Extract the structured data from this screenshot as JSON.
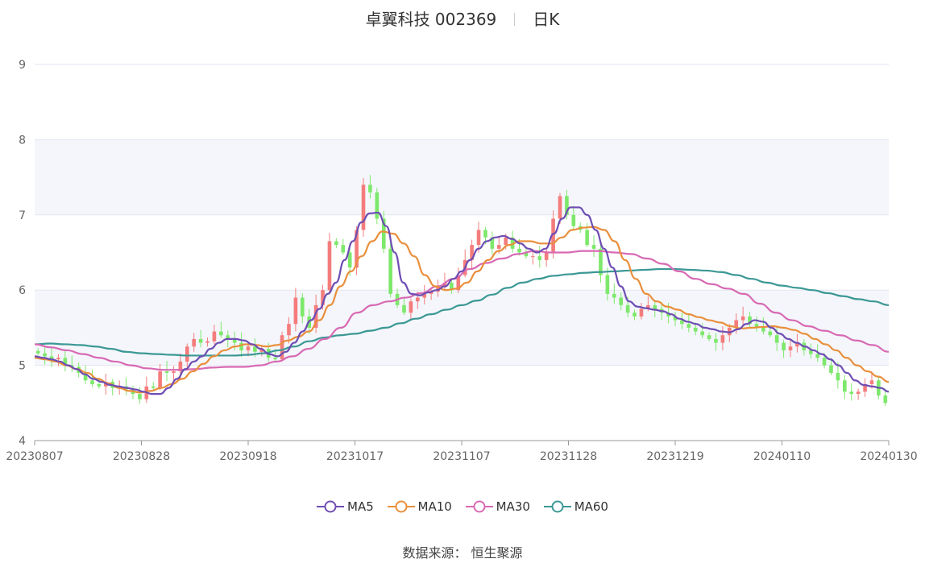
{
  "header": {
    "stock": "卓翼科技 002369",
    "period": "日K"
  },
  "source_text": "数据来源：  恒生聚源",
  "chart_data": {
    "type": "candlestick",
    "title": "卓翼科技 002369",
    "ylim": [
      4,
      9
    ],
    "yticks": [
      "9",
      "8",
      "7",
      "6",
      "5",
      "4"
    ],
    "x_tick_labels": [
      "20230807",
      "20230828",
      "20230918",
      "20231017",
      "20231107",
      "20231128",
      "20231219",
      "20240110",
      "20240130"
    ],
    "up_color": "#f47c7c",
    "down_color": "#7de86b",
    "band_color": "#f4f6fb",
    "ohlc_close": [
      5.16,
      5.12,
      5.08,
      5.1,
      5.0,
      4.98,
      4.9,
      4.8,
      4.75,
      4.72,
      4.78,
      4.7,
      4.72,
      4.68,
      4.62,
      4.55,
      4.72,
      4.7,
      4.92,
      4.9,
      4.92,
      5.05,
      5.25,
      5.35,
      5.3,
      5.32,
      5.45,
      5.4,
      5.35,
      5.3,
      5.2,
      5.25,
      5.18,
      5.22,
      5.1,
      5.08,
      5.4,
      5.55,
      5.9,
      5.65,
      5.5,
      5.8,
      6.0,
      6.65,
      6.6,
      6.5,
      6.3,
      6.8,
      7.4,
      7.3,
      6.95,
      6.55,
      5.95,
      5.8,
      5.7,
      5.85,
      5.9,
      5.95,
      5.98,
      6.05,
      6.1,
      6.0,
      6.2,
      6.4,
      6.6,
      6.8,
      6.7,
      6.55,
      6.6,
      6.7,
      6.55,
      6.5,
      6.45,
      6.45,
      6.4,
      6.5,
      6.95,
      7.25,
      7.0,
      6.85,
      6.8,
      6.6,
      6.55,
      6.2,
      5.95,
      5.9,
      5.8,
      5.7,
      5.65,
      5.75,
      5.8,
      5.75,
      5.7,
      5.65,
      5.6,
      5.55,
      5.5,
      5.45,
      5.4,
      5.35,
      5.3,
      5.4,
      5.5,
      5.6,
      5.65,
      5.55,
      5.5,
      5.45,
      5.4,
      5.3,
      5.2,
      5.25,
      5.3,
      5.2,
      5.15,
      5.1,
      5.0,
      4.9,
      4.8,
      4.65,
      4.62,
      4.65,
      4.75,
      4.8,
      4.6,
      4.5
    ],
    "ma_legend": [
      "MA5",
      "MA10",
      "MA30",
      "MA60"
    ],
    "ma_colors": [
      "#6e4eb3",
      "#e98f3c",
      "#d869b3",
      "#3b9895"
    ],
    "ma5": [
      5.12,
      5.1,
      5.08,
      5.05,
      5.0,
      4.95,
      4.88,
      4.82,
      4.78,
      4.74,
      4.72,
      4.7,
      4.68,
      4.65,
      4.62,
      4.62,
      4.7,
      4.82,
      4.95,
      5.05,
      5.12,
      5.22,
      5.3,
      5.35,
      5.35,
      5.33,
      5.28,
      5.22,
      5.15,
      5.12,
      5.18,
      5.3,
      5.45,
      5.6,
      5.75,
      5.95,
      6.1,
      6.4,
      6.65,
      6.9,
      7.02,
      7.03,
      6.85,
      6.5,
      6.1,
      5.95,
      5.93,
      5.97,
      6.0,
      6.05,
      6.15,
      6.25,
      6.4,
      6.55,
      6.65,
      6.7,
      6.72,
      6.68,
      6.62,
      6.55,
      6.5,
      6.55,
      6.75,
      6.95,
      7.1,
      7.1,
      7.0,
      6.8,
      6.55,
      6.3,
      6.05,
      5.85,
      5.78,
      5.76,
      5.74,
      5.72,
      5.68,
      5.62,
      5.58,
      5.55,
      5.5,
      5.48,
      5.45,
      5.44,
      5.48,
      5.55,
      5.6,
      5.58,
      5.5,
      5.42,
      5.35,
      5.3,
      5.25,
      5.2,
      5.15,
      5.08,
      5.0,
      4.9,
      4.8,
      4.74,
      4.72,
      4.7,
      4.65
    ],
    "ma10": [
      5.1,
      5.08,
      5.05,
      5.0,
      4.95,
      4.9,
      4.82,
      4.76,
      4.7,
      4.66,
      4.64,
      4.66,
      4.7,
      4.75,
      4.82,
      4.92,
      5.02,
      5.12,
      5.2,
      5.25,
      5.28,
      5.27,
      5.25,
      5.27,
      5.33,
      5.38,
      5.45,
      5.6,
      5.8,
      6.05,
      6.25,
      6.45,
      6.65,
      6.78,
      6.75,
      6.62,
      6.45,
      6.2,
      6.05,
      6.0,
      6.02,
      6.1,
      6.25,
      6.4,
      6.52,
      6.6,
      6.65,
      6.65,
      6.62,
      6.62,
      6.7,
      6.8,
      6.83,
      6.84,
      6.8,
      6.65,
      6.4,
      6.15,
      5.95,
      5.85,
      5.78,
      5.74,
      5.68,
      5.64,
      5.6,
      5.57,
      5.52,
      5.49,
      5.5,
      5.51,
      5.52,
      5.5,
      5.47,
      5.42,
      5.35,
      5.28,
      5.2,
      5.1,
      5.0,
      4.92,
      4.85,
      4.78
    ],
    "ma30": [
      5.28,
      5.24,
      5.2,
      5.15,
      5.1,
      5.05,
      5.0,
      4.96,
      4.94,
      4.94,
      4.95,
      4.97,
      4.98,
      4.98,
      5.0,
      5.05,
      5.12,
      5.22,
      5.35,
      5.5,
      5.7,
      5.8,
      5.85,
      5.9,
      5.96,
      6.05,
      6.15,
      6.28,
      6.36,
      6.42,
      6.48,
      6.52,
      6.5,
      6.5,
      6.52,
      6.52,
      6.5,
      6.48,
      6.42,
      6.35,
      6.25,
      6.15,
      6.08,
      6.02,
      5.95,
      5.82,
      5.7,
      5.6,
      5.52,
      5.46,
      5.4,
      5.33,
      5.27,
      5.18
    ],
    "ma60": [
      5.28,
      5.29,
      5.28,
      5.27,
      5.25,
      5.22,
      5.18,
      5.16,
      5.15,
      5.14,
      5.13,
      5.13,
      5.13,
      5.13,
      5.14,
      5.16,
      5.2,
      5.25,
      5.32,
      5.37,
      5.4,
      5.42,
      5.46,
      5.5,
      5.56,
      5.62,
      5.68,
      5.74,
      5.8,
      5.86,
      5.94,
      6.03,
      6.1,
      6.15,
      6.19,
      6.21,
      6.23,
      6.24,
      6.25,
      6.26,
      6.27,
      6.28,
      6.28,
      6.27,
      6.26,
      6.24,
      6.2,
      6.15,
      6.1,
      6.06,
      6.03,
      6.0,
      5.96,
      5.92,
      5.88,
      5.85,
      5.8
    ]
  }
}
